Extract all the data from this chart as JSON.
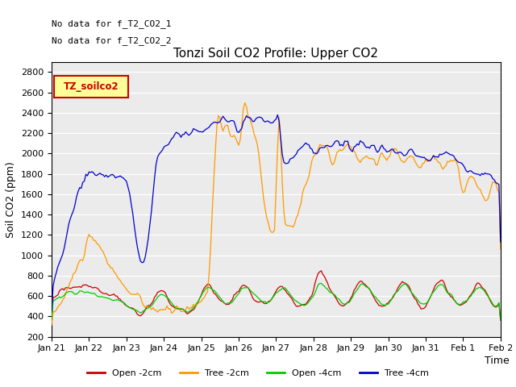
{
  "title": "Tonzi Soil CO2 Profile: Upper CO2",
  "ylabel": "Soil CO2 (ppm)",
  "xlabel": "Time",
  "annotation1": "No data for f_T2_CO2_1",
  "annotation2": "No data for f_T2_CO2_2",
  "legend_label": "TZ_soilco2",
  "legend_color": "#cc0000",
  "legend_bg": "#ffff99",
  "ylim": [
    200,
    2900
  ],
  "yticks": [
    200,
    400,
    600,
    800,
    1000,
    1200,
    1400,
    1600,
    1800,
    2000,
    2200,
    2400,
    2600,
    2800
  ],
  "line_colors": {
    "open_2cm": "#cc0000",
    "tree_2cm": "#ff9900",
    "open_4cm": "#00cc00",
    "tree_4cm": "#0000cc"
  },
  "line_labels": [
    "Open -2cm",
    "Tree -2cm",
    "Open -4cm",
    "Tree -4cm"
  ],
  "x_tick_labels": [
    "Jan 21",
    "Jan 22",
    "Jan 23",
    "Jan 24",
    "Jan 25",
    "Jan 26",
    "Jan 27",
    "Jan 28",
    "Jan 29",
    "Jan 30",
    "Jan 31",
    "Feb 1",
    "Feb 2"
  ],
  "plot_bg": "#ebebeb"
}
